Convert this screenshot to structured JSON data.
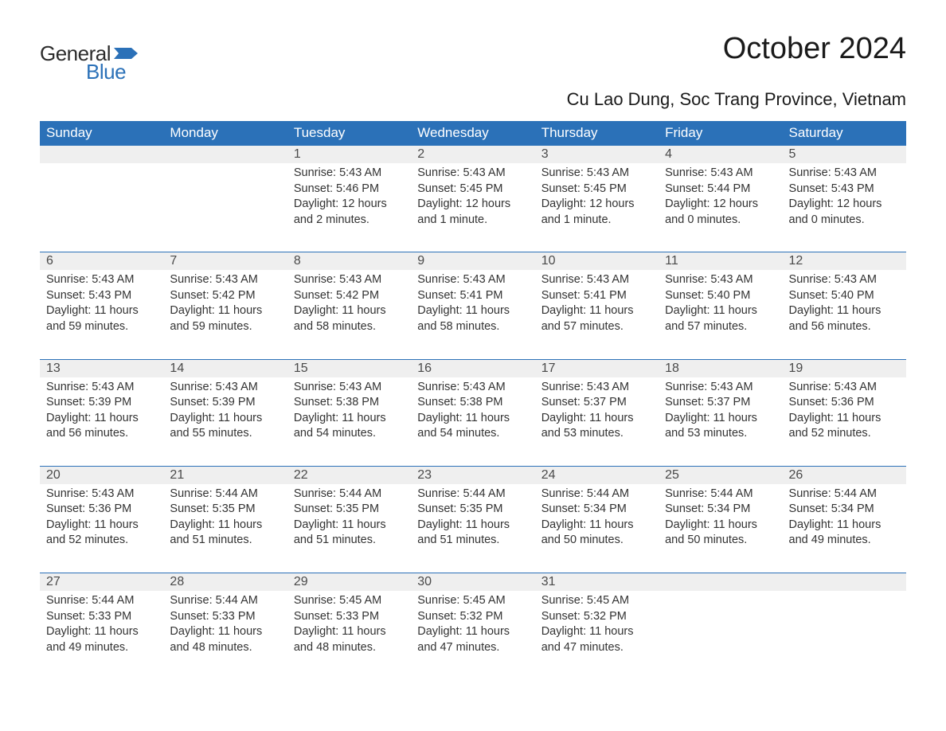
{
  "logo": {
    "text_top": "General",
    "text_bottom": "Blue",
    "color_general": "#2c2c2c",
    "color_blue": "#2b71b8",
    "flag_color": "#2b71b8"
  },
  "title": "October 2024",
  "subtitle": "Cu Lao Dung, Soc Trang Province, Vietnam",
  "colors": {
    "header_bg": "#2b71b8",
    "header_text": "#ffffff",
    "daynum_bg": "#efefef",
    "border": "#2b71b8",
    "body_text": "#333333"
  },
  "typography": {
    "title_fontsize": 38,
    "subtitle_fontsize": 22,
    "dayname_fontsize": 17,
    "daynum_fontsize": 16,
    "cell_fontsize": 14.5
  },
  "day_names": [
    "Sunday",
    "Monday",
    "Tuesday",
    "Wednesday",
    "Thursday",
    "Friday",
    "Saturday"
  ],
  "weeks": [
    {
      "nums": [
        "",
        "",
        "1",
        "2",
        "3",
        "4",
        "5"
      ],
      "cells": [
        {
          "sunrise": "",
          "sunset": "",
          "daylight": ""
        },
        {
          "sunrise": "",
          "sunset": "",
          "daylight": ""
        },
        {
          "sunrise": "Sunrise: 5:43 AM",
          "sunset": "Sunset: 5:46 PM",
          "daylight": "Daylight: 12 hours and 2 minutes."
        },
        {
          "sunrise": "Sunrise: 5:43 AM",
          "sunset": "Sunset: 5:45 PM",
          "daylight": "Daylight: 12 hours and 1 minute."
        },
        {
          "sunrise": "Sunrise: 5:43 AM",
          "sunset": "Sunset: 5:45 PM",
          "daylight": "Daylight: 12 hours and 1 minute."
        },
        {
          "sunrise": "Sunrise: 5:43 AM",
          "sunset": "Sunset: 5:44 PM",
          "daylight": "Daylight: 12 hours and 0 minutes."
        },
        {
          "sunrise": "Sunrise: 5:43 AM",
          "sunset": "Sunset: 5:43 PM",
          "daylight": "Daylight: 12 hours and 0 minutes."
        }
      ]
    },
    {
      "nums": [
        "6",
        "7",
        "8",
        "9",
        "10",
        "11",
        "12"
      ],
      "cells": [
        {
          "sunrise": "Sunrise: 5:43 AM",
          "sunset": "Sunset: 5:43 PM",
          "daylight": "Daylight: 11 hours and 59 minutes."
        },
        {
          "sunrise": "Sunrise: 5:43 AM",
          "sunset": "Sunset: 5:42 PM",
          "daylight": "Daylight: 11 hours and 59 minutes."
        },
        {
          "sunrise": "Sunrise: 5:43 AM",
          "sunset": "Sunset: 5:42 PM",
          "daylight": "Daylight: 11 hours and 58 minutes."
        },
        {
          "sunrise": "Sunrise: 5:43 AM",
          "sunset": "Sunset: 5:41 PM",
          "daylight": "Daylight: 11 hours and 58 minutes."
        },
        {
          "sunrise": "Sunrise: 5:43 AM",
          "sunset": "Sunset: 5:41 PM",
          "daylight": "Daylight: 11 hours and 57 minutes."
        },
        {
          "sunrise": "Sunrise: 5:43 AM",
          "sunset": "Sunset: 5:40 PM",
          "daylight": "Daylight: 11 hours and 57 minutes."
        },
        {
          "sunrise": "Sunrise: 5:43 AM",
          "sunset": "Sunset: 5:40 PM",
          "daylight": "Daylight: 11 hours and 56 minutes."
        }
      ]
    },
    {
      "nums": [
        "13",
        "14",
        "15",
        "16",
        "17",
        "18",
        "19"
      ],
      "cells": [
        {
          "sunrise": "Sunrise: 5:43 AM",
          "sunset": "Sunset: 5:39 PM",
          "daylight": "Daylight: 11 hours and 56 minutes."
        },
        {
          "sunrise": "Sunrise: 5:43 AM",
          "sunset": "Sunset: 5:39 PM",
          "daylight": "Daylight: 11 hours and 55 minutes."
        },
        {
          "sunrise": "Sunrise: 5:43 AM",
          "sunset": "Sunset: 5:38 PM",
          "daylight": "Daylight: 11 hours and 54 minutes."
        },
        {
          "sunrise": "Sunrise: 5:43 AM",
          "sunset": "Sunset: 5:38 PM",
          "daylight": "Daylight: 11 hours and 54 minutes."
        },
        {
          "sunrise": "Sunrise: 5:43 AM",
          "sunset": "Sunset: 5:37 PM",
          "daylight": "Daylight: 11 hours and 53 minutes."
        },
        {
          "sunrise": "Sunrise: 5:43 AM",
          "sunset": "Sunset: 5:37 PM",
          "daylight": "Daylight: 11 hours and 53 minutes."
        },
        {
          "sunrise": "Sunrise: 5:43 AM",
          "sunset": "Sunset: 5:36 PM",
          "daylight": "Daylight: 11 hours and 52 minutes."
        }
      ]
    },
    {
      "nums": [
        "20",
        "21",
        "22",
        "23",
        "24",
        "25",
        "26"
      ],
      "cells": [
        {
          "sunrise": "Sunrise: 5:43 AM",
          "sunset": "Sunset: 5:36 PM",
          "daylight": "Daylight: 11 hours and 52 minutes."
        },
        {
          "sunrise": "Sunrise: 5:44 AM",
          "sunset": "Sunset: 5:35 PM",
          "daylight": "Daylight: 11 hours and 51 minutes."
        },
        {
          "sunrise": "Sunrise: 5:44 AM",
          "sunset": "Sunset: 5:35 PM",
          "daylight": "Daylight: 11 hours and 51 minutes."
        },
        {
          "sunrise": "Sunrise: 5:44 AM",
          "sunset": "Sunset: 5:35 PM",
          "daylight": "Daylight: 11 hours and 51 minutes."
        },
        {
          "sunrise": "Sunrise: 5:44 AM",
          "sunset": "Sunset: 5:34 PM",
          "daylight": "Daylight: 11 hours and 50 minutes."
        },
        {
          "sunrise": "Sunrise: 5:44 AM",
          "sunset": "Sunset: 5:34 PM",
          "daylight": "Daylight: 11 hours and 50 minutes."
        },
        {
          "sunrise": "Sunrise: 5:44 AM",
          "sunset": "Sunset: 5:34 PM",
          "daylight": "Daylight: 11 hours and 49 minutes."
        }
      ]
    },
    {
      "nums": [
        "27",
        "28",
        "29",
        "30",
        "31",
        "",
        ""
      ],
      "cells": [
        {
          "sunrise": "Sunrise: 5:44 AM",
          "sunset": "Sunset: 5:33 PM",
          "daylight": "Daylight: 11 hours and 49 minutes."
        },
        {
          "sunrise": "Sunrise: 5:44 AM",
          "sunset": "Sunset: 5:33 PM",
          "daylight": "Daylight: 11 hours and 48 minutes."
        },
        {
          "sunrise": "Sunrise: 5:45 AM",
          "sunset": "Sunset: 5:33 PM",
          "daylight": "Daylight: 11 hours and 48 minutes."
        },
        {
          "sunrise": "Sunrise: 5:45 AM",
          "sunset": "Sunset: 5:32 PM",
          "daylight": "Daylight: 11 hours and 47 minutes."
        },
        {
          "sunrise": "Sunrise: 5:45 AM",
          "sunset": "Sunset: 5:32 PM",
          "daylight": "Daylight: 11 hours and 47 minutes."
        },
        {
          "sunrise": "",
          "sunset": "",
          "daylight": ""
        },
        {
          "sunrise": "",
          "sunset": "",
          "daylight": ""
        }
      ]
    }
  ]
}
